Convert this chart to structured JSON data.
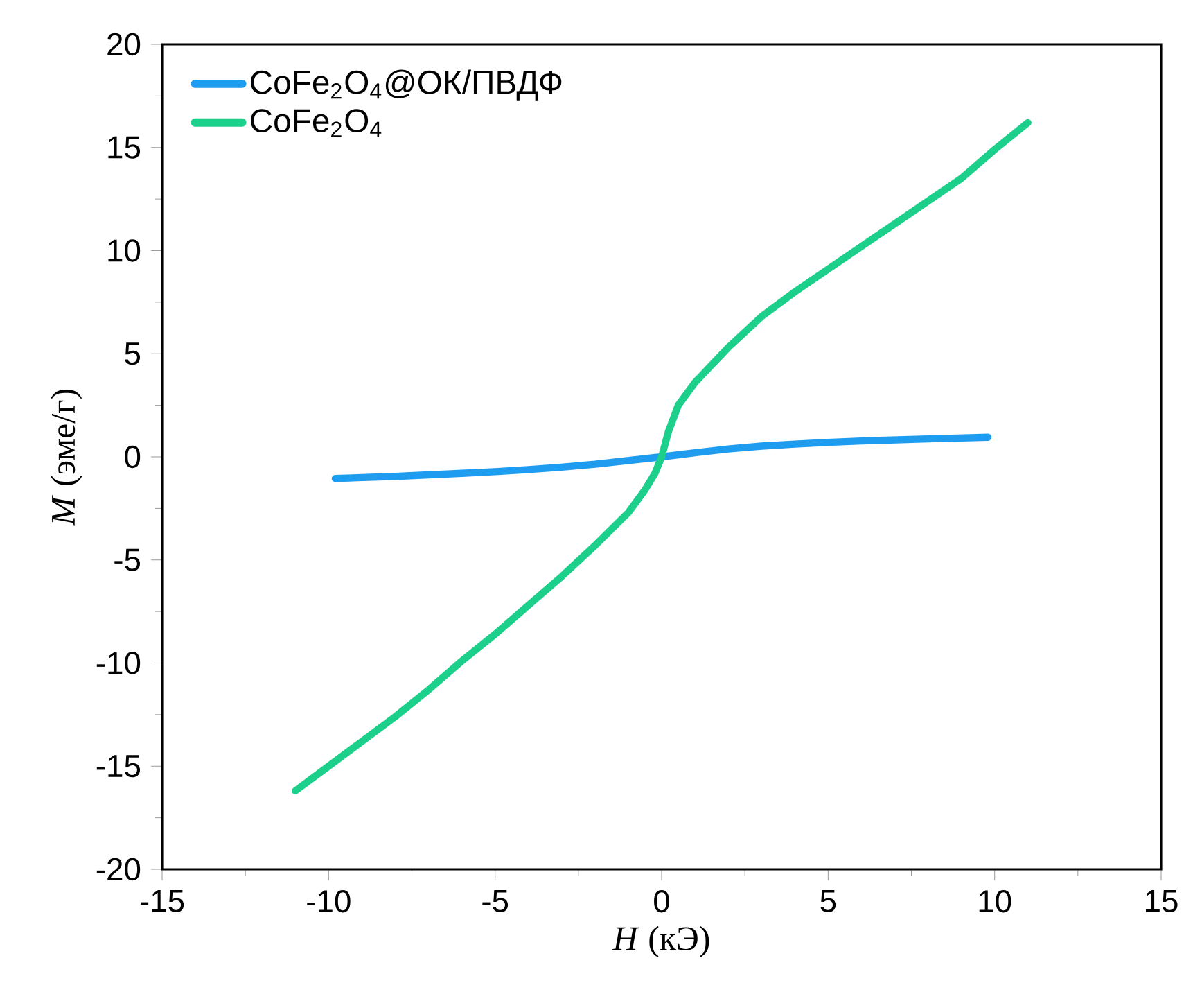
{
  "chart_data": {
    "type": "line",
    "xlabel": "*H* (кЭ)",
    "ylabel": "*M* (эме/г)",
    "xlim": [
      -15,
      15
    ],
    "ylim": [
      -20,
      20
    ],
    "xticks": [
      -15,
      -10,
      -5,
      0,
      5,
      10,
      15
    ],
    "yticks": [
      -20,
      -15,
      -10,
      -5,
      0,
      5,
      10,
      15,
      20
    ],
    "grid": false,
    "legend": "top left",
    "marker": "none",
    "line_style": "solid",
    "series": [
      {
        "name": "CoFe$_{2}$O$_{4}$@ОК/ПВДФ",
        "color": "#1e9cf0",
        "x": [
          -9.8,
          -8,
          -6,
          -5,
          -4,
          -3,
          -2,
          -1,
          0,
          1,
          2,
          3,
          4,
          5,
          6,
          8,
          9.8
        ],
        "values": [
          -1.05,
          -0.95,
          -0.8,
          -0.72,
          -0.62,
          -0.5,
          -0.36,
          -0.18,
          0,
          0.2,
          0.38,
          0.52,
          0.62,
          0.7,
          0.77,
          0.87,
          0.95
        ]
      },
      {
        "name": "CoFe$_{2}$O$_{4}$",
        "color": "#1ccf8a",
        "x": [
          -11,
          -10,
          -9,
          -8,
          -7,
          -6,
          -5,
          -4,
          -3,
          -2,
          -1,
          -0.5,
          -0.2,
          0,
          0.2,
          0.5,
          1,
          2,
          3,
          4,
          5,
          6,
          7,
          8,
          9,
          10,
          11
        ],
        "values": [
          -16.2,
          -15,
          -13.8,
          -12.6,
          -11.3,
          -9.9,
          -8.6,
          -7.2,
          -5.8,
          -4.3,
          -2.7,
          -1.6,
          -0.8,
          0,
          1.2,
          2.5,
          3.6,
          5.3,
          6.8,
          8,
          9.1,
          10.2,
          11.3,
          12.4,
          13.5,
          14.9,
          16.2
        ]
      }
    ]
  }
}
